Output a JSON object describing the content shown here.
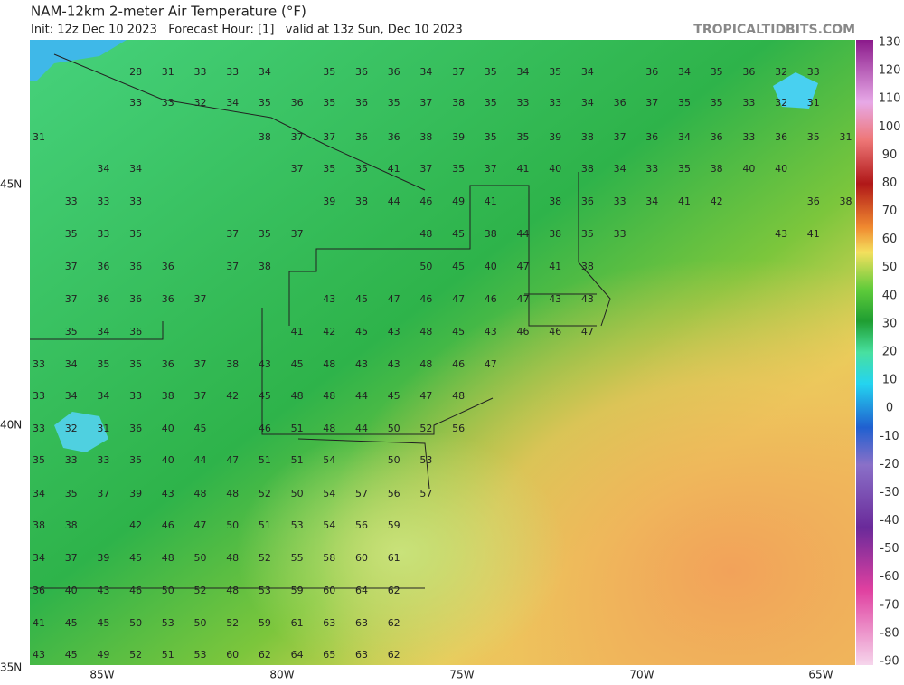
{
  "header": {
    "title": "NAM-12km 2-meter Air Temperature (°F)",
    "subtitle": "Init: 12z Dec 10 2023   Forecast Hour: [1]   valid at 13z Sun, Dec 10 2023",
    "source": "TROPICALTIDBITS.COM"
  },
  "colorbar": {
    "labels": [
      130,
      120,
      110,
      100,
      90,
      80,
      70,
      60,
      50,
      40,
      30,
      20,
      10,
      0,
      -10,
      -20,
      -30,
      -40,
      -50,
      -60,
      -70,
      -80,
      -90
    ]
  },
  "lat_labels": [
    "45N",
    "40N",
    "35N"
  ],
  "lon_labels": [
    "85W",
    "80W",
    "75W",
    "70W",
    "65W"
  ],
  "station_values": [
    [
      null,
      null,
      null,
      28,
      31,
      33,
      33,
      34,
      null,
      35,
      36,
      36,
      34,
      37,
      35,
      34,
      35,
      34,
      null,
      36,
      34,
      35,
      36,
      32,
      33,
      null
    ],
    [
      null,
      null,
      null,
      33,
      33,
      32,
      34,
      35,
      36,
      35,
      36,
      35,
      37,
      38,
      35,
      33,
      33,
      34,
      36,
      37,
      35,
      35,
      33,
      32,
      31,
      null
    ],
    [
      31,
      null,
      null,
      null,
      null,
      null,
      null,
      38,
      37,
      37,
      36,
      36,
      38,
      39,
      35,
      35,
      39,
      38,
      37,
      36,
      34,
      36,
      33,
      36,
      35,
      31
    ],
    [
      null,
      null,
      34,
      34,
      null,
      null,
      null,
      null,
      37,
      35,
      35,
      41,
      37,
      35,
      37,
      41,
      40,
      38,
      34,
      33,
      35,
      38,
      40,
      40,
      null,
      null
    ],
    [
      null,
      33,
      33,
      33,
      null,
      null,
      null,
      null,
      null,
      39,
      38,
      44,
      46,
      49,
      41,
      null,
      38,
      36,
      33,
      34,
      41,
      42,
      null,
      null,
      36,
      38
    ],
    [
      null,
      35,
      33,
      35,
      null,
      null,
      37,
      35,
      37,
      null,
      null,
      null,
      48,
      45,
      38,
      44,
      38,
      35,
      33,
      null,
      null,
      null,
      null,
      43,
      41,
      null
    ],
    [
      null,
      37,
      36,
      36,
      36,
      null,
      37,
      38,
      null,
      null,
      null,
      null,
      50,
      45,
      40,
      47,
      41,
      38,
      null,
      null,
      null,
      null,
      null,
      null,
      null,
      null
    ],
    [
      null,
      37,
      36,
      36,
      36,
      37,
      null,
      null,
      null,
      43,
      45,
      47,
      46,
      47,
      46,
      47,
      43,
      43,
      null,
      null,
      null,
      null,
      null,
      null,
      null,
      null
    ],
    [
      null,
      35,
      34,
      36,
      null,
      null,
      null,
      null,
      41,
      42,
      45,
      43,
      48,
      45,
      43,
      46,
      46,
      47,
      null,
      null,
      null,
      null,
      null,
      null,
      null,
      null
    ],
    [
      33,
      34,
      35,
      35,
      36,
      37,
      38,
      43,
      45,
      48,
      43,
      43,
      48,
      46,
      47,
      null,
      null,
      null,
      null,
      null,
      null,
      null,
      null,
      null,
      null,
      null
    ],
    [
      33,
      34,
      34,
      33,
      38,
      37,
      42,
      45,
      48,
      48,
      44,
      45,
      47,
      48,
      null,
      null,
      null,
      null,
      null,
      null,
      null,
      null,
      null,
      null,
      null,
      null
    ],
    [
      33,
      32,
      31,
      36,
      40,
      45,
      null,
      46,
      51,
      48,
      44,
      50,
      52,
      56,
      null,
      null,
      null,
      null,
      null,
      null,
      null,
      null,
      null,
      null,
      null,
      null
    ],
    [
      35,
      33,
      33,
      35,
      40,
      44,
      47,
      51,
      51,
      54,
      null,
      50,
      53,
      null,
      null,
      null,
      null,
      null,
      null,
      null,
      null,
      null,
      null,
      null,
      null,
      null
    ],
    [
      34,
      35,
      37,
      39,
      43,
      48,
      48,
      52,
      50,
      54,
      57,
      56,
      57,
      null,
      null,
      null,
      null,
      null,
      null,
      null,
      null,
      null,
      null,
      null,
      null,
      null
    ],
    [
      38,
      38,
      null,
      42,
      46,
      47,
      50,
      51,
      53,
      54,
      56,
      59,
      null,
      null,
      null,
      null,
      null,
      null,
      null,
      null,
      null,
      null,
      null,
      null,
      null,
      null
    ],
    [
      34,
      37,
      39,
      45,
      48,
      50,
      48,
      52,
      55,
      58,
      60,
      61,
      null,
      null,
      null,
      null,
      null,
      null,
      null,
      null,
      null,
      null,
      null,
      null,
      null,
      null
    ],
    [
      36,
      40,
      43,
      46,
      50,
      52,
      48,
      53,
      59,
      60,
      64,
      62,
      null,
      null,
      null,
      null,
      null,
      null,
      null,
      null,
      null,
      null,
      null,
      null,
      null,
      null
    ],
    [
      41,
      45,
      45,
      50,
      53,
      50,
      52,
      59,
      61,
      63,
      63,
      62,
      null,
      null,
      null,
      null,
      null,
      null,
      null,
      null,
      null,
      null,
      null,
      null,
      null,
      null
    ],
    [
      43,
      45,
      49,
      52,
      51,
      53,
      60,
      62,
      64,
      65,
      63,
      62,
      null,
      null,
      null,
      null,
      null,
      null,
      null,
      null,
      null,
      null,
      null,
      null,
      null,
      null
    ]
  ]
}
